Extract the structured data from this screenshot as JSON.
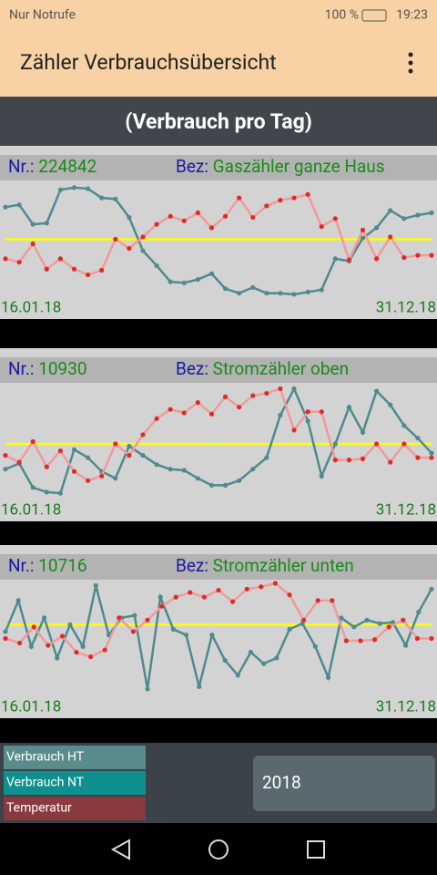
{
  "status_bar": {
    "carrier": "Nur Notrufe",
    "battery": "100 %",
    "time": "19:23"
  },
  "app_bar": {
    "title": "Zähler Verbrauchsübersicht"
  },
  "header": {
    "title": "(Verbrauch pro Tag)"
  },
  "panels": [
    {
      "nr_label": "Nr.:",
      "nr": "224842",
      "bez_label": "Bez:",
      "bez": "Gaszähler ganze Haus",
      "start_date": "16.01.18",
      "end_date": "31.12.18",
      "chart": {
        "type": "line",
        "ylim": [
          0,
          100
        ],
        "reference_line": {
          "value": 52,
          "color": "#ffff00"
        },
        "series": [
          {
            "color": "#4f8a8f",
            "values": [
              80,
              82,
              65,
              66,
              95,
              97,
              96,
              88,
              87,
              71,
              42,
              29,
              15,
              14,
              17,
              22,
              9,
              5,
              10,
              5,
              5,
              4,
              6,
              8,
              35,
              33,
              53,
              62,
              77,
              70,
              73,
              75
            ]
          },
          {
            "color": "#e02a2a",
            "values": [
              35,
              32,
              48,
              26,
              35,
              26,
              21,
              25,
              52,
              44,
              54,
              65,
              72,
              68,
              75,
              62,
              72,
              88,
              71,
              81,
              86,
              88,
              91,
              63,
              70,
              34,
              60,
              35,
              54,
              36,
              38,
              38
            ]
          }
        ]
      }
    },
    {
      "nr_label": "Nr.:",
      "nr": "10930",
      "bez_label": "Bez:",
      "bez": "Stromzähler oben",
      "start_date": "16.01.18",
      "end_date": "31.12.18",
      "chart": {
        "type": "line",
        "ylim": [
          0,
          100
        ],
        "reference_line": {
          "value": 50,
          "color": "#ffff00"
        },
        "series": [
          {
            "color": "#4f8a8f",
            "values": [
              28,
              33,
              12,
              8,
              7,
              45,
              38,
              26,
              20,
              48,
              40,
              32,
              28,
              27,
              20,
              14,
              14,
              18,
              28,
              38,
              75,
              98,
              70,
              22,
              50,
              82,
              60,
              96,
              84,
              66,
              55,
              42
            ]
          },
          {
            "color": "#e02a2a",
            "values": [
              40,
              34,
              52,
              30,
              44,
              26,
              18,
              22,
              50,
              40,
              58,
              72,
              80,
              77,
              86,
              76,
              91,
              82,
              92,
              94,
              98,
              62,
              78,
              78,
              36,
              36,
              37,
              50,
              34,
              50,
              38,
              38
            ]
          }
        ]
      }
    },
    {
      "nr_label": "Nr.:",
      "nr": "10716",
      "bez_label": "Bez:",
      "bez": "Stromzähler unten",
      "start_date": "16.01.18",
      "end_date": "31.12.18",
      "chart": {
        "type": "line",
        "ylim": [
          0,
          100
        ],
        "reference_line": {
          "value": 64,
          "color": "#ffff00"
        },
        "series": [
          {
            "color": "#4f8a8f",
            "values": [
              58,
              85,
              45,
              70,
              35,
              64,
              45,
              98,
              55,
              70,
              72,
              8,
              88,
              60,
              55,
              10,
              55,
              33,
              20,
              40,
              30,
              35,
              60,
              65,
              45,
              18,
              70,
              62,
              68,
              65,
              66,
              46,
              75,
              95
            ]
          },
          {
            "color": "#e02a2a",
            "values": [
              52,
              48,
              62,
              46,
              54,
              40,
              36,
              42,
              70,
              58,
              68,
              80,
              88,
              92,
              88,
              94,
              84,
              95,
              97,
              100,
              90,
              68,
              85,
              85,
              50,
              50,
              51,
              62,
              68,
              52,
              52
            ]
          }
        ]
      }
    }
  ],
  "legend": [
    {
      "name": "Verbrauch HT",
      "color": "#5a8c8c"
    },
    {
      "name": "Verbrauch NT",
      "color": "#0f8f8f"
    },
    {
      "name": "Temperatur",
      "color": "#8a3a3f"
    }
  ],
  "year_button": "2018"
}
